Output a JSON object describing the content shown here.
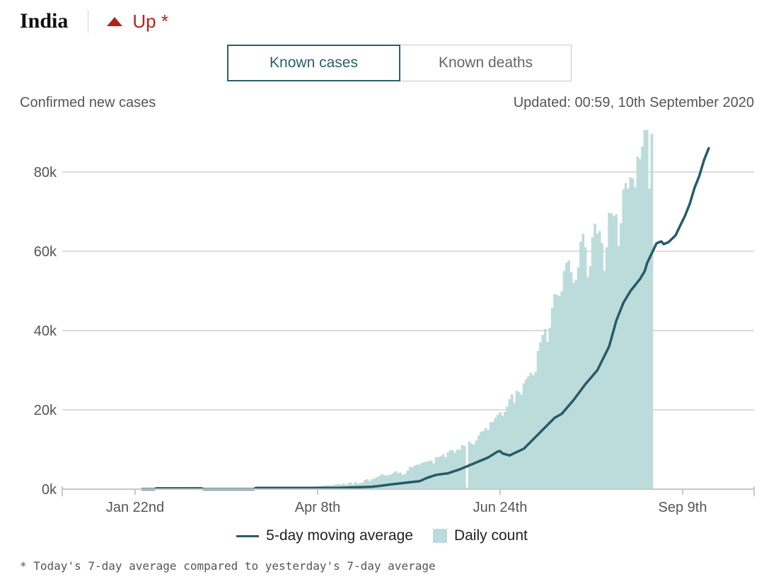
{
  "header": {
    "country": "India",
    "trend_label": "Up *",
    "trend_color": "#b5221b"
  },
  "tabs": [
    {
      "label": "Known cases",
      "active": true
    },
    {
      "label": "Known deaths",
      "active": false
    }
  ],
  "subtitle": "Confirmed new cases",
  "updated": "Updated: 00:59, 10th September 2020",
  "legend": {
    "line_label": "5-day moving average",
    "bar_label": "Daily count"
  },
  "footnote": "* Today's 7-day average compared to yesterday's 7-day average",
  "colors": {
    "bar": "#bcdcdb",
    "line": "#285a68",
    "grid": "#dcdcdc",
    "axis": "#c8c8c8",
    "tick": "#555555"
  },
  "chart_data": {
    "type": "bar",
    "title": "Confirmed new cases",
    "xlabel": "",
    "ylabel": "",
    "ylim": [
      0,
      90000
    ],
    "day_range": [
      0,
      231
    ],
    "y_ticks": [
      {
        "value": 0,
        "label": "0k"
      },
      {
        "value": 20000,
        "label": "20k"
      },
      {
        "value": 40000,
        "label": "40k"
      },
      {
        "value": 60000,
        "label": "60k"
      },
      {
        "value": 80000,
        "label": "80k"
      }
    ],
    "x_ticks": [
      {
        "day": 0,
        "label": "Jan 22nd"
      },
      {
        "day": 77,
        "label": "Apr 8th"
      },
      {
        "day": 154,
        "label": "Jun 24th"
      },
      {
        "day": 231,
        "label": "Sep 9th"
      }
    ],
    "series": [
      {
        "name": "Daily count",
        "kind": "bar",
        "start_day": 0,
        "values": [
          0,
          0,
          0,
          0,
          0,
          0,
          0,
          0,
          0,
          1,
          2,
          3,
          0,
          0,
          0,
          0,
          0,
          0,
          0,
          0,
          0,
          0,
          0,
          0,
          0,
          0,
          0,
          0,
          0,
          0,
          0,
          0,
          0,
          0,
          0,
          0,
          0,
          0,
          0,
          0,
          0,
          2,
          1,
          2,
          0,
          1,
          8,
          10,
          15,
          20,
          30,
          15,
          20,
          25,
          30,
          60,
          80,
          60,
          90,
          75,
          100,
          120,
          130,
          110,
          160,
          200,
          280,
          250,
          300,
          350,
          300,
          480,
          420,
          500,
          600,
          640,
          560,
          700,
          800,
          850,
          910,
          950,
          1000,
          950,
          1100,
          1200,
          1300,
          1100,
          1400,
          1100,
          1500,
          1700,
          1200,
          1800,
          1400,
          1500,
          1700,
          2300,
          2500,
          2000,
          2500,
          2700,
          3000,
          3300,
          3800,
          3600,
          3400,
          3600,
          3700,
          4100,
          4500,
          4000,
          4200,
          3600,
          3900,
          4700,
          5600,
          5500,
          6000,
          6200,
          6200,
          6600,
          6800,
          7000,
          7100,
          7200,
          6500,
          8100,
          8100,
          8300,
          8800,
          8000,
          9300,
          9900,
          9800,
          9200,
          10000,
          9900,
          11100,
          10900,
          400,
          12000,
          11500,
          11300,
          12300,
          13600,
          14500,
          14700,
          15400,
          14900,
          16900,
          17000,
          18000,
          18800,
          19400,
          18500,
          19500,
          20900,
          22700,
          23900,
          21700,
          24800,
          24500,
          23800,
          26700,
          27800,
          28500,
          29400,
          28700,
          29600,
          34900,
          37000,
          38900,
          40400,
          37200,
          40700,
          45700,
          49200,
          49000,
          48800,
          49900,
          55000,
          57100,
          57700,
          54700,
          52000,
          52800,
          56000,
          62400,
          64400,
          61000,
          53500,
          56300,
          63500,
          67000,
          64500,
          65100,
          62100,
          55100,
          61000,
          69700,
          69600,
          68900,
          69300,
          61300,
          67100,
          75600,
          77200,
          75800,
          78700,
          78400,
          76100,
          83900,
          83300,
          86400,
          90600,
          90600,
          75800,
          89700
        ]
      },
      {
        "name": "5-day moving average",
        "kind": "line",
        "start_day": 3,
        "points": [
          [
            3,
            0
          ],
          [
            8,
            0
          ],
          [
            9,
            200
          ],
          [
            28,
            200
          ],
          [
            29,
            0
          ],
          [
            50,
            0
          ],
          [
            51,
            300
          ],
          [
            85,
            300
          ],
          [
            100,
            600
          ],
          [
            103,
            800
          ],
          [
            108,
            1200
          ],
          [
            114,
            1600
          ],
          [
            120,
            2000
          ],
          [
            123,
            2800
          ],
          [
            127,
            3600
          ],
          [
            132,
            4000
          ],
          [
            137,
            5000
          ],
          [
            143,
            6500
          ],
          [
            149,
            8000
          ],
          [
            153,
            9500
          ],
          [
            154,
            9600
          ],
          [
            155,
            9000
          ],
          [
            158,
            8500
          ],
          [
            159,
            8800
          ],
          [
            164,
            10200
          ],
          [
            167,
            12000
          ],
          [
            172,
            15000
          ],
          [
            177,
            18000
          ],
          [
            180,
            19000
          ],
          [
            185,
            22500
          ],
          [
            190,
            26500
          ],
          [
            195,
            30000
          ],
          [
            200,
            36000
          ],
          [
            203,
            42500
          ],
          [
            206,
            47000
          ],
          [
            209,
            50000
          ],
          [
            213,
            53000
          ],
          [
            215,
            55000
          ],
          [
            216,
            57000
          ],
          [
            218,
            59500
          ],
          [
            220,
            62000
          ],
          [
            222,
            62500
          ],
          [
            223,
            61800
          ],
          [
            225,
            62300
          ],
          [
            228,
            64000
          ],
          [
            230,
            66500
          ],
          [
            232,
            69000
          ],
          [
            234,
            72000
          ],
          [
            236,
            76000
          ],
          [
            238,
            79000
          ],
          [
            240,
            83000
          ],
          [
            242,
            86000
          ]
        ]
      }
    ]
  }
}
